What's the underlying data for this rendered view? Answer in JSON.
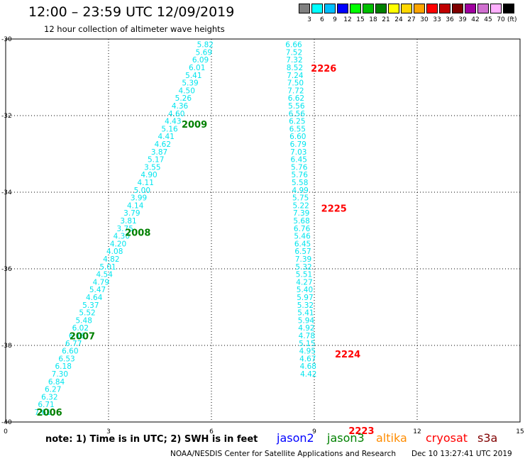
{
  "header": {
    "title": "12:00 – 23:59 UTC 12/09/2019",
    "subtitle": "12 hour collection of altimeter wave heights"
  },
  "legend": {
    "unit": "(ft)",
    "bins": [
      {
        "label": "3",
        "color": "#808080"
      },
      {
        "label": "6",
        "color": "#00ffff"
      },
      {
        "label": "9",
        "color": "#00bfff"
      },
      {
        "label": "12",
        "color": "#0000ff"
      },
      {
        "label": "15",
        "color": "#00ff00"
      },
      {
        "label": "18",
        "color": "#00c000"
      },
      {
        "label": "21",
        "color": "#008000"
      },
      {
        "label": "24",
        "color": "#ffff00"
      },
      {
        "label": "27",
        "color": "#ffd700"
      },
      {
        "label": "30",
        "color": "#ffa500"
      },
      {
        "label": "33",
        "color": "#ff0000"
      },
      {
        "label": "36",
        "color": "#c00000"
      },
      {
        "label": "39",
        "color": "#800000"
      },
      {
        "label": "42",
        "color": "#a000a0"
      },
      {
        "label": "45",
        "color": "#d070d0"
      },
      {
        "label": "70",
        "color": "#ffb0ff"
      },
      {
        "label": "",
        "color": "#000000"
      }
    ]
  },
  "footer": {
    "note": "note: 1) Time is in UTC; 2) SWH is in feet",
    "satellites": [
      {
        "name": "jason2",
        "color": "#0000ff"
      },
      {
        "name": "jason3",
        "color": "#008000"
      },
      {
        "name": "altika",
        "color": "#ff8c00"
      },
      {
        "name": "cryosat",
        "color": "#ff0000"
      },
      {
        "name": "s3a",
        "color": "#800000"
      }
    ],
    "credit": "NOAA/NESDIS Center for Satellite Applications and Research",
    "timestamp": "Dec 10 13:27:41 UTC 2019"
  },
  "chart_data": {
    "type": "scatter",
    "xlim": [
      0,
      15
    ],
    "ylim": [
      -40,
      -30
    ],
    "xticks": [
      "0",
      "3",
      "6",
      "9",
      "12",
      "15"
    ],
    "yticks": [
      "-30",
      "-32",
      "-34",
      "-36",
      "-38",
      "-40"
    ],
    "grid": true,
    "series": [
      {
        "name": "jason3",
        "value_color": "#00e5ee",
        "points": [
          {
            "x": 5.82,
            "y": -30.14,
            "v": "5.82"
          },
          {
            "x": 5.78,
            "y": -30.34,
            "v": "5.69"
          },
          {
            "x": 5.68,
            "y": -30.54,
            "v": "6.09"
          },
          {
            "x": 5.58,
            "y": -30.74,
            "v": "6.01"
          },
          {
            "x": 5.48,
            "y": -30.94,
            "v": "5.41"
          },
          {
            "x": 5.38,
            "y": -31.14,
            "v": "5.39"
          },
          {
            "x": 5.28,
            "y": -31.34,
            "v": "4.50"
          },
          {
            "x": 5.18,
            "y": -31.54,
            "v": "5.26"
          },
          {
            "x": 5.08,
            "y": -31.74,
            "v": "4.36"
          },
          {
            "x": 4.98,
            "y": -31.94,
            "v": "4.60"
          },
          {
            "x": 4.88,
            "y": -32.14,
            "v": "4.43"
          },
          {
            "x": 4.78,
            "y": -32.34,
            "v": "5.16"
          },
          {
            "x": 4.68,
            "y": -32.54,
            "v": "4.41"
          },
          {
            "x": 4.58,
            "y": -32.74,
            "v": "4.62"
          },
          {
            "x": 4.48,
            "y": -32.94,
            "v": "3.87"
          },
          {
            "x": 4.38,
            "y": -33.14,
            "v": "5.17"
          },
          {
            "x": 4.28,
            "y": -33.34,
            "v": "3.55"
          },
          {
            "x": 4.18,
            "y": -33.54,
            "v": "4.90"
          },
          {
            "x": 4.08,
            "y": -33.74,
            "v": "4.11"
          },
          {
            "x": 3.98,
            "y": -33.94,
            "v": "5.00"
          },
          {
            "x": 3.88,
            "y": -34.14,
            "v": "3.99"
          },
          {
            "x": 3.78,
            "y": -34.34,
            "v": "4.14"
          },
          {
            "x": 3.68,
            "y": -34.54,
            "v": "3.79"
          },
          {
            "x": 3.58,
            "y": -34.74,
            "v": "3.81"
          },
          {
            "x": 3.48,
            "y": -34.94,
            "v": "3.75"
          },
          {
            "x": 3.38,
            "y": -35.14,
            "v": "4.30"
          },
          {
            "x": 3.28,
            "y": -35.34,
            "v": "4.20"
          },
          {
            "x": 3.18,
            "y": -35.54,
            "v": "4.08"
          },
          {
            "x": 3.08,
            "y": -35.74,
            "v": "4.82"
          },
          {
            "x": 2.98,
            "y": -35.94,
            "v": "5.01"
          },
          {
            "x": 2.88,
            "y": -36.14,
            "v": "4.54"
          },
          {
            "x": 2.78,
            "y": -36.34,
            "v": "4.79"
          },
          {
            "x": 2.68,
            "y": -36.54,
            "v": "5.47"
          },
          {
            "x": 2.58,
            "y": -36.74,
            "v": "4.64"
          },
          {
            "x": 2.48,
            "y": -36.94,
            "v": "5.37"
          },
          {
            "x": 2.38,
            "y": -37.14,
            "v": "5.52"
          },
          {
            "x": 2.28,
            "y": -37.34,
            "v": "5.48"
          },
          {
            "x": 2.18,
            "y": -37.54,
            "v": "6.02"
          },
          {
            "x": 2.08,
            "y": -37.74,
            "v": "6.16"
          },
          {
            "x": 1.98,
            "y": -37.94,
            "v": "6.77"
          },
          {
            "x": 1.88,
            "y": -38.14,
            "v": "6.60"
          },
          {
            "x": 1.78,
            "y": -38.34,
            "v": "6.53"
          },
          {
            "x": 1.68,
            "y": -38.54,
            "v": "6.18"
          },
          {
            "x": 1.58,
            "y": -38.74,
            "v": "7.30"
          },
          {
            "x": 1.48,
            "y": -38.94,
            "v": "6.84"
          },
          {
            "x": 1.38,
            "y": -39.14,
            "v": "6.27"
          },
          {
            "x": 1.28,
            "y": -39.34,
            "v": "6.32"
          },
          {
            "x": 1.18,
            "y": -39.54,
            "v": "6.71"
          },
          {
            "x": 1.08,
            "y": -39.74,
            "v": "7.61"
          }
        ],
        "pass_labels": [
          {
            "x": 5.13,
            "y": -32.22,
            "text": "2009"
          },
          {
            "x": 3.48,
            "y": -35.05,
            "text": "2008"
          },
          {
            "x": 1.86,
            "y": -37.75,
            "text": "2007"
          },
          {
            "x": 0.9,
            "y": -39.74,
            "text": "2006"
          }
        ]
      },
      {
        "name": "cryosat",
        "value_color": "#00e5ee",
        "points": [
          {
            "x": 8.4,
            "y": -30.14,
            "v": "6.66"
          },
          {
            "x": 8.41,
            "y": -30.34,
            "v": "7.52"
          },
          {
            "x": 8.42,
            "y": -30.54,
            "v": "7.32"
          },
          {
            "x": 8.43,
            "y": -30.74,
            "v": "8.52"
          },
          {
            "x": 8.44,
            "y": -30.94,
            "v": "7.24"
          },
          {
            "x": 8.45,
            "y": -31.14,
            "v": "7.50"
          },
          {
            "x": 8.46,
            "y": -31.34,
            "v": "7.72"
          },
          {
            "x": 8.47,
            "y": -31.54,
            "v": "6.62"
          },
          {
            "x": 8.48,
            "y": -31.74,
            "v": "5.56"
          },
          {
            "x": 8.49,
            "y": -31.94,
            "v": "6.56"
          },
          {
            "x": 8.5,
            "y": -32.14,
            "v": "6.25"
          },
          {
            "x": 8.51,
            "y": -32.34,
            "v": "6.55"
          },
          {
            "x": 8.52,
            "y": -32.54,
            "v": "6.60"
          },
          {
            "x": 8.53,
            "y": -32.74,
            "v": "6.79"
          },
          {
            "x": 8.54,
            "y": -32.94,
            "v": "7.03"
          },
          {
            "x": 8.55,
            "y": -33.14,
            "v": "6.45"
          },
          {
            "x": 8.56,
            "y": -33.34,
            "v": "5.76"
          },
          {
            "x": 8.57,
            "y": -33.54,
            "v": "5.76"
          },
          {
            "x": 8.58,
            "y": -33.74,
            "v": "5.58"
          },
          {
            "x": 8.59,
            "y": -33.94,
            "v": "4.99"
          },
          {
            "x": 8.6,
            "y": -34.14,
            "v": "5.75"
          },
          {
            "x": 8.61,
            "y": -34.34,
            "v": "5.22"
          },
          {
            "x": 8.62,
            "y": -34.54,
            "v": "7.39"
          },
          {
            "x": 8.63,
            "y": -34.74,
            "v": "5.68"
          },
          {
            "x": 8.64,
            "y": -34.94,
            "v": "6.76"
          },
          {
            "x": 8.65,
            "y": -35.14,
            "v": "5.46"
          },
          {
            "x": 8.66,
            "y": -35.34,
            "v": "6.45"
          },
          {
            "x": 8.67,
            "y": -35.54,
            "v": "6.57"
          },
          {
            "x": 8.68,
            "y": -35.74,
            "v": "7.39"
          },
          {
            "x": 8.69,
            "y": -35.94,
            "v": "5.32"
          },
          {
            "x": 8.7,
            "y": -36.14,
            "v": "5.51"
          },
          {
            "x": 8.71,
            "y": -36.34,
            "v": "4.27"
          },
          {
            "x": 8.72,
            "y": -36.54,
            "v": "5.40"
          },
          {
            "x": 8.73,
            "y": -36.74,
            "v": "5.97"
          },
          {
            "x": 8.74,
            "y": -36.94,
            "v": "5.32"
          },
          {
            "x": 8.75,
            "y": -37.14,
            "v": "5.41"
          },
          {
            "x": 8.76,
            "y": -37.34,
            "v": "5.94"
          },
          {
            "x": 8.77,
            "y": -37.54,
            "v": "4.92"
          },
          {
            "x": 8.78,
            "y": -37.74,
            "v": "4.78"
          },
          {
            "x": 8.79,
            "y": -37.94,
            "v": "5.15"
          },
          {
            "x": 8.8,
            "y": -38.14,
            "v": "4.95"
          },
          {
            "x": 8.81,
            "y": -38.34,
            "v": "4.67"
          },
          {
            "x": 8.82,
            "y": -38.54,
            "v": "4.68"
          },
          {
            "x": 8.83,
            "y": -38.74,
            "v": "4.42"
          }
        ],
        "pass_labels": [
          {
            "x": 8.9,
            "y": -30.76,
            "text": "2226"
          },
          {
            "x": 9.2,
            "y": -34.42,
            "text": "2225"
          },
          {
            "x": 9.6,
            "y": -38.22,
            "text": "2224"
          },
          {
            "x": 10.0,
            "y": -40.22,
            "text": "2223"
          }
        ]
      }
    ]
  }
}
